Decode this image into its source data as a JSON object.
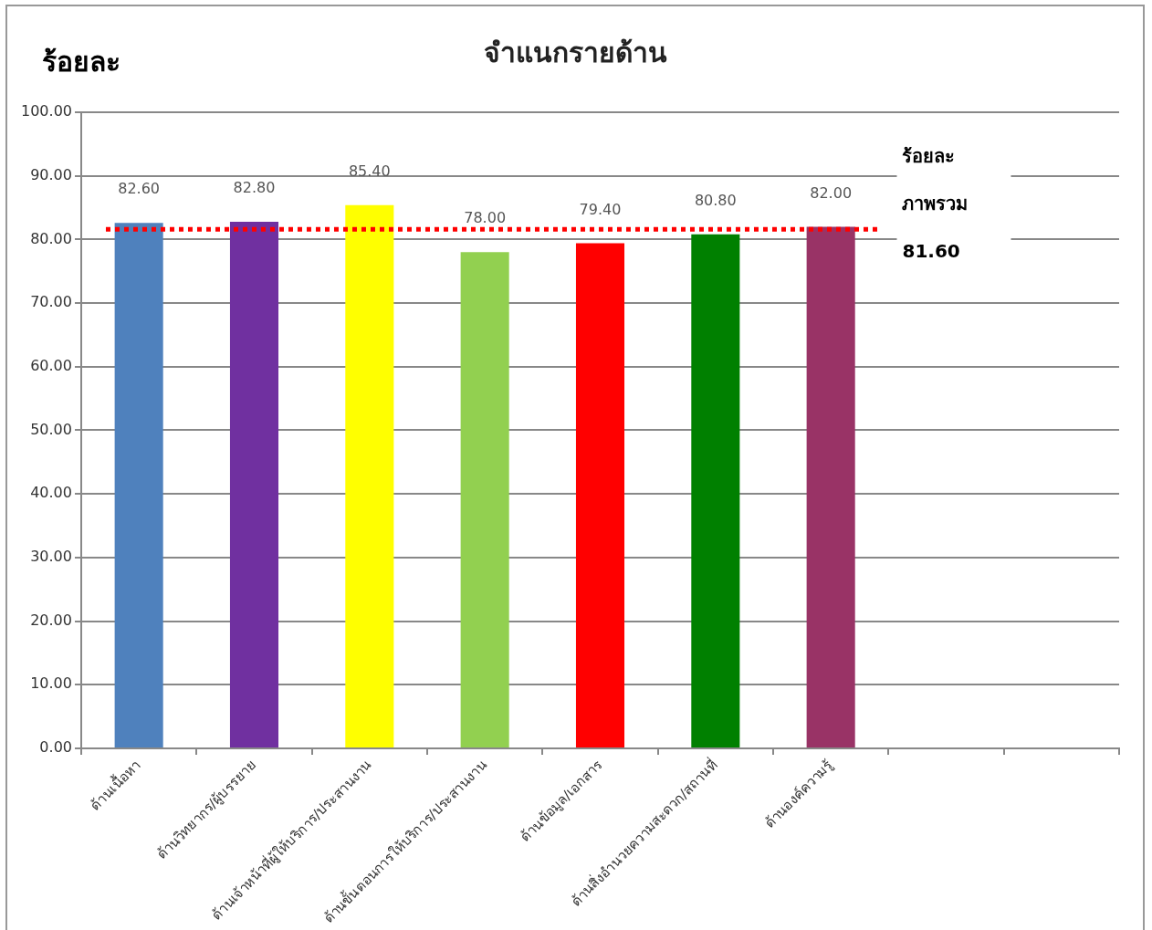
{
  "chart_data": {
    "type": "bar",
    "title": "จำแนกรายด้าน",
    "ylabel": "ร้อยละ",
    "categories": [
      "ด้านเนื้อหา",
      "ด้านวิทยากร/ผู้บรรยาย",
      "ด้านเจ้าหน้าที่ผู้ให้บริการ/ประสานงาน",
      "ด้านขั้นตอนการให้บริการ/ประสานงาน",
      "ด้านข้อมูล/เอกสาร",
      "ด้านสิ่งอำนวยความสะดวก/สถานที่",
      "ด้านองค์ความรู้",
      null,
      null
    ],
    "values": [
      82.6,
      82.8,
      85.4,
      78.0,
      79.4,
      80.8,
      82.0,
      null,
      null
    ],
    "colors": [
      "#4f81bd",
      "#7030a0",
      "#ffff00",
      "#92d050",
      "#ff0000",
      "#008000",
      "#993366",
      "#000000",
      "#000000"
    ],
    "value_labels": [
      "82.60",
      "82.80",
      "85.40",
      "78.00",
      "79.40",
      "80.80",
      "82.00",
      null,
      null
    ],
    "ylim": [
      0,
      100
    ],
    "yticks": [
      {
        "value": 0,
        "label": "0.00"
      },
      {
        "value": 10,
        "label": "10.00"
      },
      {
        "value": 20,
        "label": "20.00"
      },
      {
        "value": 30,
        "label": "30.00"
      },
      {
        "value": 40,
        "label": "40.00"
      },
      {
        "value": 50,
        "label": "50.00"
      },
      {
        "value": 60,
        "label": "60.00"
      },
      {
        "value": 70,
        "label": "70.00"
      },
      {
        "value": 80,
        "label": "80.00"
      },
      {
        "value": 90,
        "label": "90.00"
      },
      {
        "value": 100,
        "label": "100.00"
      }
    ],
    "ref_lines": [
      {
        "axis": "y",
        "value": 81.6,
        "label": "ร้อยละ ภาพรวม 81.60",
        "color": "#ff0000",
        "line_style": "dotted"
      }
    ],
    "grid": "y",
    "legend": false
  }
}
